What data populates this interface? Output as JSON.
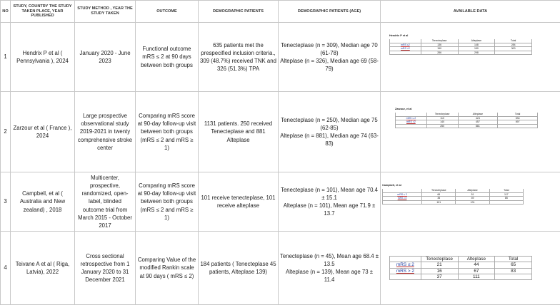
{
  "headers": {
    "no": "NO",
    "study": "STUDY, COUNTRY THE STUDY TAKEN PLACE, YEAR PUBLISHED",
    "method": "STUDY METHOD , YEAR THE STUDY TAKEN",
    "outcome": "OUTCOME",
    "demographic": "DEMOGRAPHIC PATIENTS",
    "demographic_age": "DEMOGRAPHIC PATIENTS (AGE)",
    "available": "AVAILABLE DATA"
  },
  "rows": [
    {
      "no": "1",
      "study": "Hendrix P et al ( Pennsylvania ), 2024",
      "method": "January 2020 - June 2023",
      "outcome": "Functional outcome mRS ≤ 2 at 90 days between both groups",
      "demographic": "635 patients met the prespecified inclusion criteria., 309 (48.7%) received TNK and 326 (51.3%) TPA",
      "age_a": "Tenecteplase (n = 309), Median age 70 (61-78)",
      "age_b": "Alteplase (n = 326), Median age 69 (58-79)",
      "data": {
        "caption": "Hendrix P et al",
        "header": [
          "",
          "Tenecteplase",
          "Alteplase",
          "Total"
        ],
        "rows": [
          [
            "mRS ≤2",
            "136",
            "148",
            "284"
          ],
          [
            "mRS >2",
            "150",
            "150",
            "300"
          ],
          [
            "",
            "286",
            "298",
            ""
          ]
        ]
      }
    },
    {
      "no": "2",
      "study": "Zarzour et al ( France ), 2024",
      "method": "Large prospective observational study 2019-2021 in twenty comprehensive stroke center",
      "outcome": "Comparing mRS score at 90-day follow-up visit between both groups (mRS ≤ 2 and mRS ≥ 1)",
      "demographic": "1131 patients. 250 received Tenecteplase and 881 Alteplase",
      "age_a": "Tenecteplase (n = 250), Median age 75 (62-85)",
      "age_b": "Alteplase (n = 881), Median age 74 (63-83)",
      "data": {
        "caption": "Zarzour, et al",
        "header": [
          "",
          "Tenecteplase",
          "Alteplase",
          "Total"
        ],
        "rows": [
          [
            "mRS ≤ 2",
            "110",
            "424",
            "534"
          ],
          [
            "mRS >2",
            "140",
            "457",
            "597"
          ],
          [
            "",
            "250",
            "881",
            ""
          ]
        ]
      }
    },
    {
      "no": "3",
      "study": "Campbell, et al ( Australia and New zealand) , 2018",
      "method_lines": [
        "Multicenter, prospective,",
        "randomized, open-label, blinded",
        "outcome trial from March 2015 - October 2017"
      ],
      "outcome": "Comparing mRS score at 90-day follow-up visit between both groups (mRS ≤ 2 and mRS ≥ 1)",
      "demographic": "101 receive tenecteplase, 101 receive altepIase",
      "age_a": "Tenecteplase (n = 101), Mean age 70.4 ± 15.1",
      "age_b": "Alteplase (n = 101), Mean age 71.9 ± 13.7",
      "data": {
        "caption": "Campbell, et al",
        "header": [
          "",
          "Tenecteplase",
          "Alteplase",
          "Total"
        ],
        "rows": [
          [
            "mRS ≤ 2",
            "66",
            "51",
            "117"
          ],
          [
            "mRS >2",
            "35",
            "49",
            "85"
          ],
          [
            "",
            "101",
            "101",
            ""
          ]
        ]
      }
    },
    {
      "no": "4",
      "study": "Teivane A et al ( Riga, Latvia), 2022",
      "method": "Cross sectional retrospective from 1 January 2020 to 31 December 2021",
      "outcome": "Comparing Value of the modified Rankin scale at 90 days ( mRS ≤ 2)",
      "demographic": "184 patients ( Tenecteplase 45 patients, Alteplase 139)",
      "age_a": "Tenecteplase (n = 45), Mean age 68.4 ± 13.5",
      "age_b": "Alteplase (n = 139), Mean age 73 ± 11.4",
      "data": {
        "header": [
          "",
          "Tenecteplase",
          "Alteplase",
          "Total"
        ],
        "rows": [
          [
            "mRS ≤ 2",
            "21",
            "44",
            "65"
          ],
          [
            "mRS > 2",
            "16",
            "67",
            "83"
          ],
          [
            "",
            "37",
            "111",
            ""
          ]
        ]
      }
    }
  ]
}
